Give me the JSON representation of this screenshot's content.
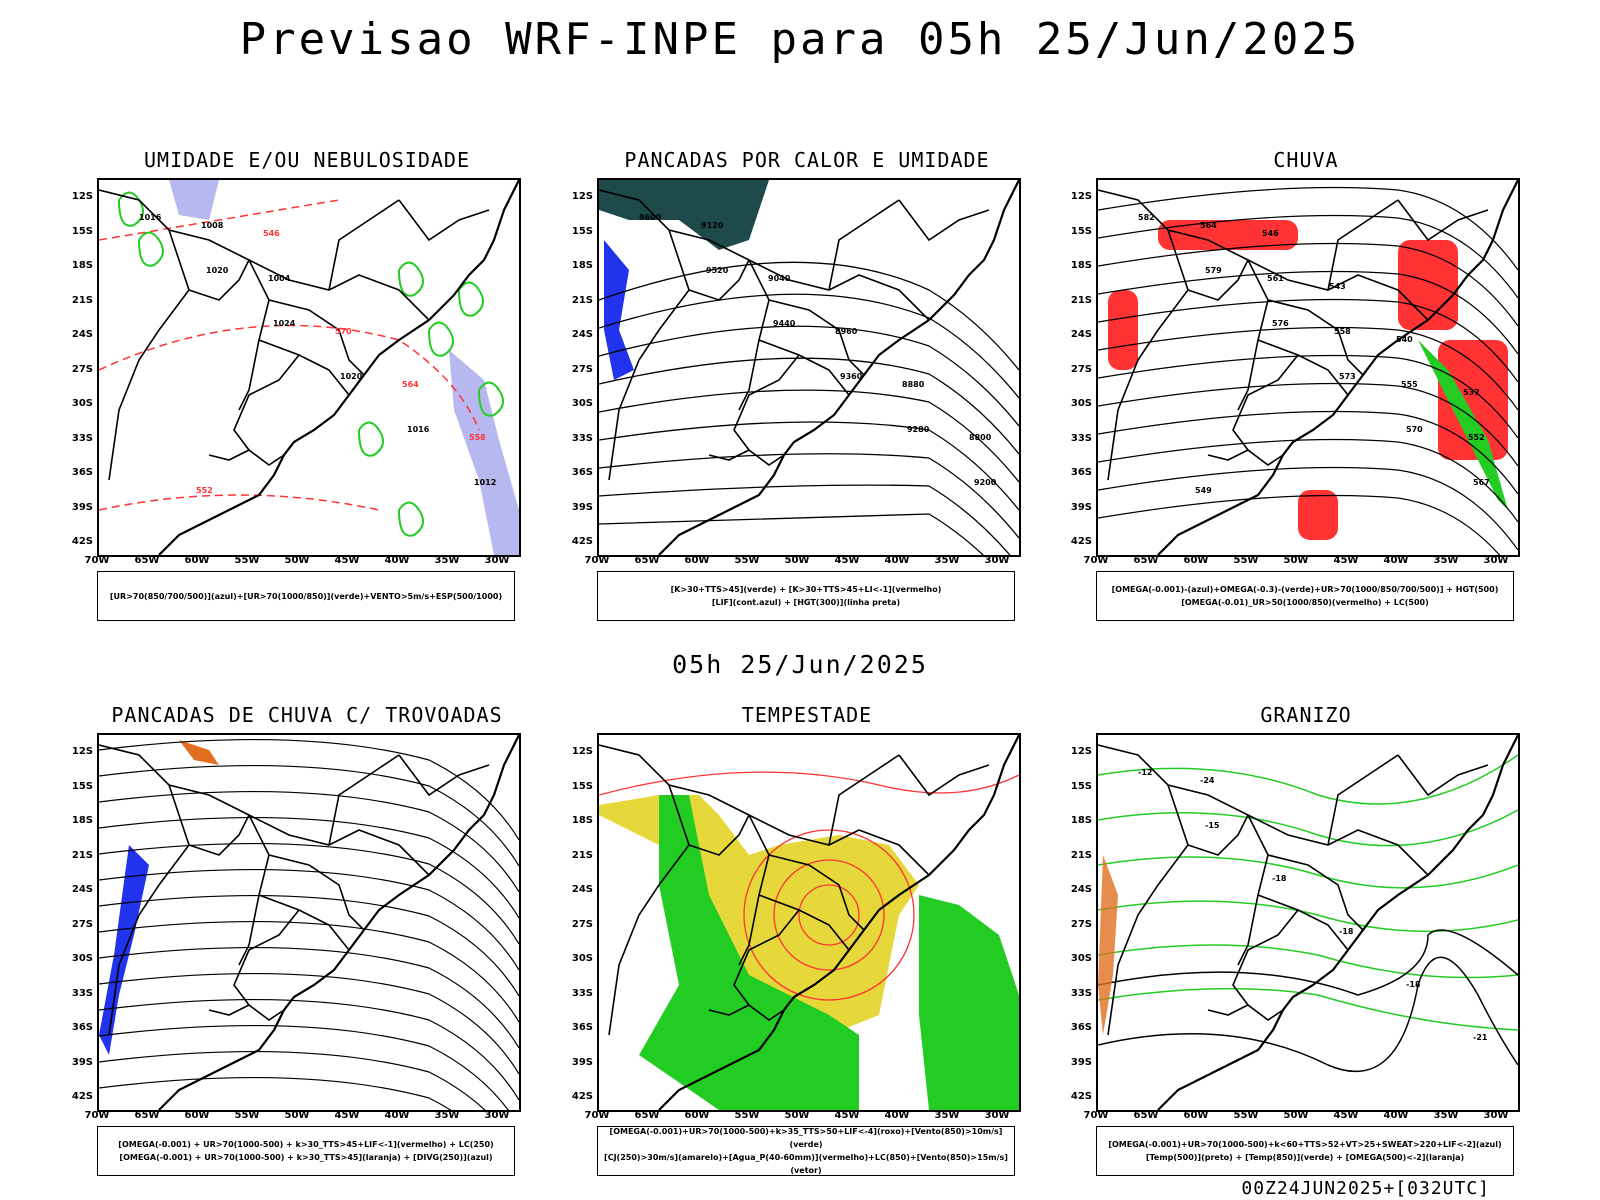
{
  "title": "Previsao WRF-INPE  para 05h 25/Jun/2025",
  "mid_date": "05h 25/Jun/2025",
  "footer": "00Z24JUN2025+[032UTC]",
  "lat_labels": [
    "12S",
    "15S",
    "18S",
    "21S",
    "24S",
    "27S",
    "30S",
    "33S",
    "36S",
    "39S",
    "42S"
  ],
  "lon_labels": [
    "70W",
    "65W",
    "60W",
    "55W",
    "50W",
    "45W",
    "40W",
    "35W",
    "30W"
  ],
  "panels": [
    {
      "title": "UMIDADE E/OU NEBULOSIDADE",
      "legend": [
        "[UR>70(850/700/500)](azul)+[UR>70(1000/850)](verde)+VENTO>5m/s+ESP(500/1000)"
      ],
      "contour_labels": [
        "1016",
        "1020",
        "1024",
        "1020",
        "1016",
        "1012",
        "1008",
        "1004",
        "570",
        "564",
        "558",
        "552",
        "546"
      ]
    },
    {
      "title": "PANCADAS POR CALOR E UMIDADE",
      "legend": [
        "[K>30+TTS>45](verde) + [K>30+TTS>45+LI<-1](vermelho)",
        "[LIF](cont.azul) + [HGT(300)](linha preta)"
      ],
      "contour_labels": [
        "9600",
        "9520",
        "9440",
        "9360",
        "9280",
        "9200",
        "9120",
        "9040",
        "8960",
        "8880",
        "8800"
      ]
    },
    {
      "title": "CHUVA",
      "legend": [
        "[OMEGA(-0.001)-(azul)+OMEGA(-0.3)-(verde)+UR>70(1000/850/700/500)] + HGT(500)",
        "[OMEGA(-0.01)_UR>50(1000/850)(vermelho) + LC(500)"
      ],
      "contour_labels": [
        "582",
        "579",
        "576",
        "573",
        "570",
        "567",
        "564",
        "561",
        "558",
        "555",
        "552",
        "549",
        "546",
        "543",
        "540",
        "537"
      ]
    },
    {
      "title": "PANCADAS DE CHUVA C/ TROVOADAS",
      "legend": [
        "[OMEGA(-0.001) + UR>70(1000-500) + k>30_TTS>45+LIF<-1](vermelho) + LC(250)",
        "[OMEGA(-0.001) + UR>70(1000-500) + k>30_TTS>45](laranja) + [DIVG(250)](azul)"
      ],
      "contour_labels": []
    },
    {
      "title": "TEMPESTADE",
      "legend": [
        "[OMEGA(-0.001)+UR>70(1000-500)+k>35_TTS>50+LIF<-4](roxo)+[Vento(850)>10m/s](verde)",
        "[CJ(250)>30m/s](amarelo)+[Agua_P(40-60mm)](vermelho)+LC(850)+[Vento(850)>15m/s](vetor)"
      ],
      "contour_labels": []
    },
    {
      "title": "GRANIZO",
      "legend": [
        "[OMEGA(-0.001)+UR>70(1000-500)+k<60+TTS>52+VT>25+SWEAT>220+LIF<-2](azul)",
        "[Temp(500)](preto) + [Temp(850)](verde) + [OMEGA(500)<-2](laranja)"
      ],
      "contour_labels": [
        "-12",
        "-15",
        "-18",
        "-18",
        "-18",
        "-21",
        "-24"
      ]
    }
  ],
  "colors": {
    "blue": "#2233ee",
    "green": "#22cc22",
    "red": "#ff3333",
    "orange": "#e07020",
    "yellow": "#e6d83a",
    "dark_teal": "#1f4a4a",
    "lavender": "#b8b8f0"
  }
}
